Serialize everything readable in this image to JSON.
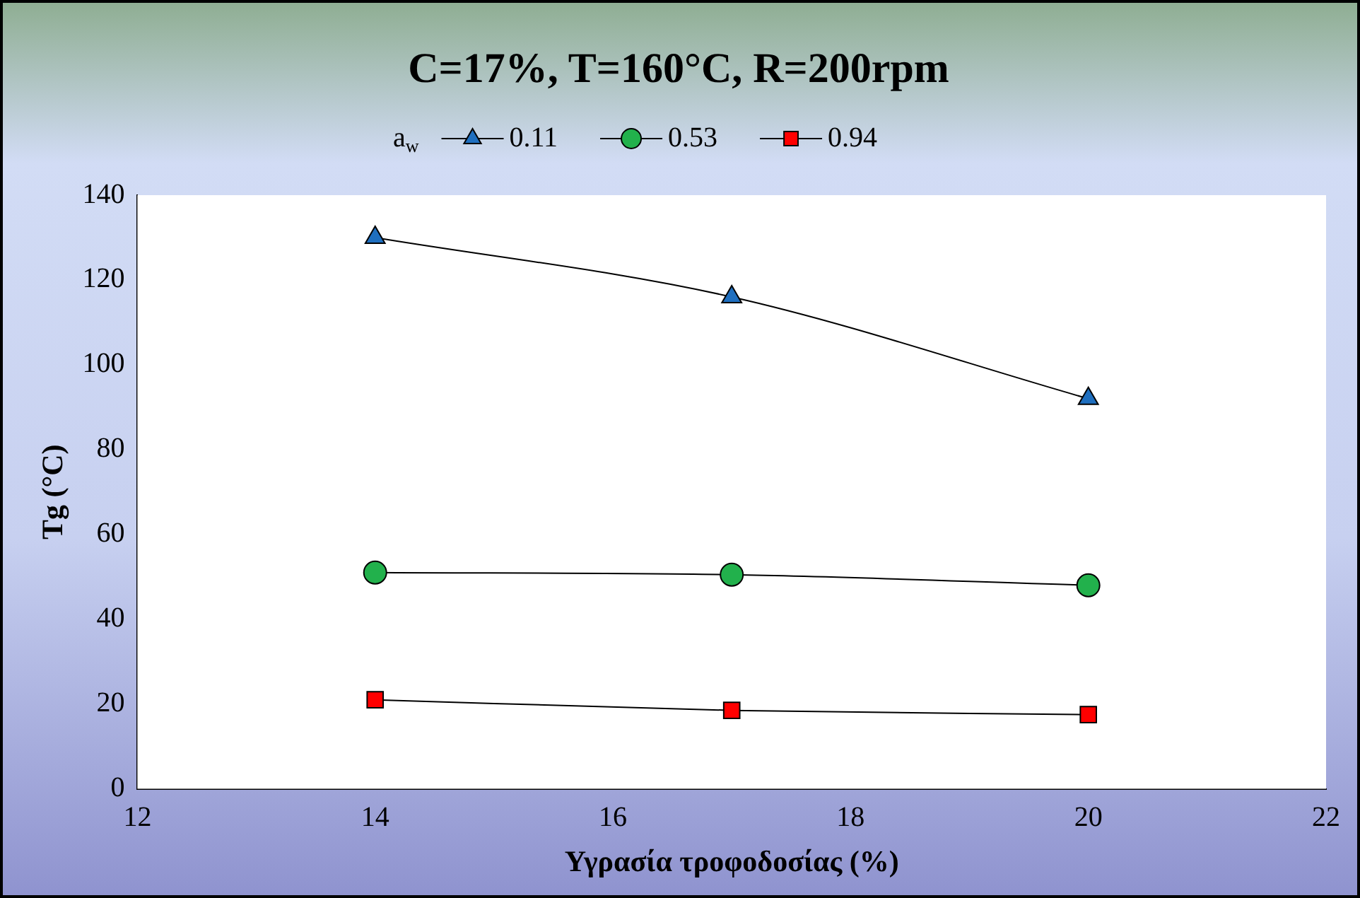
{
  "chart_data": {
    "type": "line",
    "title": "C=17%, T=160°C, R=200rpm",
    "xlabel": "Υγρασία τροφοδοσίας (%)",
    "ylabel": "Tg (°C)",
    "legend_title": "a$_{w}$",
    "legend": "top",
    "series": [
      {
        "name": "0.11",
        "color": "#1f6fbf",
        "marker": "triangle",
        "x": [
          14,
          17,
          20
        ],
        "values": [
          130,
          116,
          92
        ]
      },
      {
        "name": "0.53",
        "color": "#22b14c",
        "marker": "circle",
        "x": [
          14,
          17,
          20
        ],
        "values": [
          51,
          50.5,
          48
        ]
      },
      {
        "name": "0.94",
        "color": "#ff0000",
        "marker": "square",
        "x": [
          14,
          17,
          20
        ],
        "values": [
          21,
          18.5,
          17.5
        ]
      }
    ],
    "xlim": [
      12,
      22
    ],
    "xticks": [
      12,
      14,
      16,
      18,
      20,
      22
    ],
    "ylim": [
      0,
      140
    ],
    "yticks": [
      0,
      20,
      40,
      60,
      80,
      100,
      120,
      140
    ],
    "grid": false
  }
}
